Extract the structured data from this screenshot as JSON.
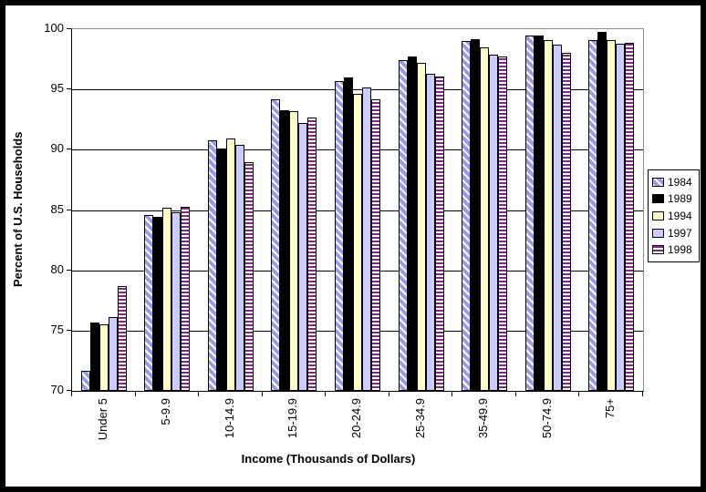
{
  "chart_data": {
    "type": "bar",
    "title": "",
    "xlabel": "Income (Thousands of Dollars)",
    "ylabel": "Percent of U.S. Households",
    "ylim": [
      70,
      100
    ],
    "yticks": [
      70,
      75,
      80,
      85,
      90,
      95,
      100
    ],
    "grid": true,
    "legend_position": "right",
    "categories": [
      "Under 5",
      "5-9.9",
      "10-14.9",
      "15-19.9",
      "20-24.9",
      "25-34.9",
      "35-49.9",
      "50-74.9",
      "75+"
    ],
    "series": [
      {
        "name": "1984",
        "pattern": "diagonal-hatch",
        "color": "#9A9AE6",
        "bg": "#FFFFFF",
        "values": [
          71.7,
          84.6,
          90.8,
          94.2,
          95.7,
          97.4,
          99.0,
          99.5,
          99.1
        ]
      },
      {
        "name": "1989",
        "pattern": "solid",
        "color": "#000000",
        "bg": "#000000",
        "values": [
          75.7,
          84.4,
          90.1,
          93.3,
          96.0,
          97.7,
          99.2,
          99.5,
          99.8
        ]
      },
      {
        "name": "1994",
        "pattern": "solid",
        "color": "#FFFFCC",
        "bg": "#FFFFCC",
        "values": [
          75.5,
          85.2,
          90.9,
          93.2,
          94.6,
          97.2,
          98.5,
          99.1,
          99.1
        ]
      },
      {
        "name": "1997",
        "pattern": "solid",
        "color": "#CCCCFF",
        "bg": "#CCCCFF",
        "values": [
          76.1,
          84.8,
          90.4,
          92.2,
          95.2,
          96.3,
          97.9,
          98.7,
          98.8
        ]
      },
      {
        "name": "1998",
        "pattern": "horizontal-stripes",
        "color": "#7E2A7E",
        "bg": "#FFFFFF",
        "values": [
          78.7,
          85.3,
          89.0,
          92.7,
          94.2,
          96.1,
          97.7,
          98.0,
          98.9
        ]
      }
    ],
    "colors": {
      "gridline": "#000000",
      "plot_border_top_right": "#909090",
      "frame": "#000000"
    }
  }
}
